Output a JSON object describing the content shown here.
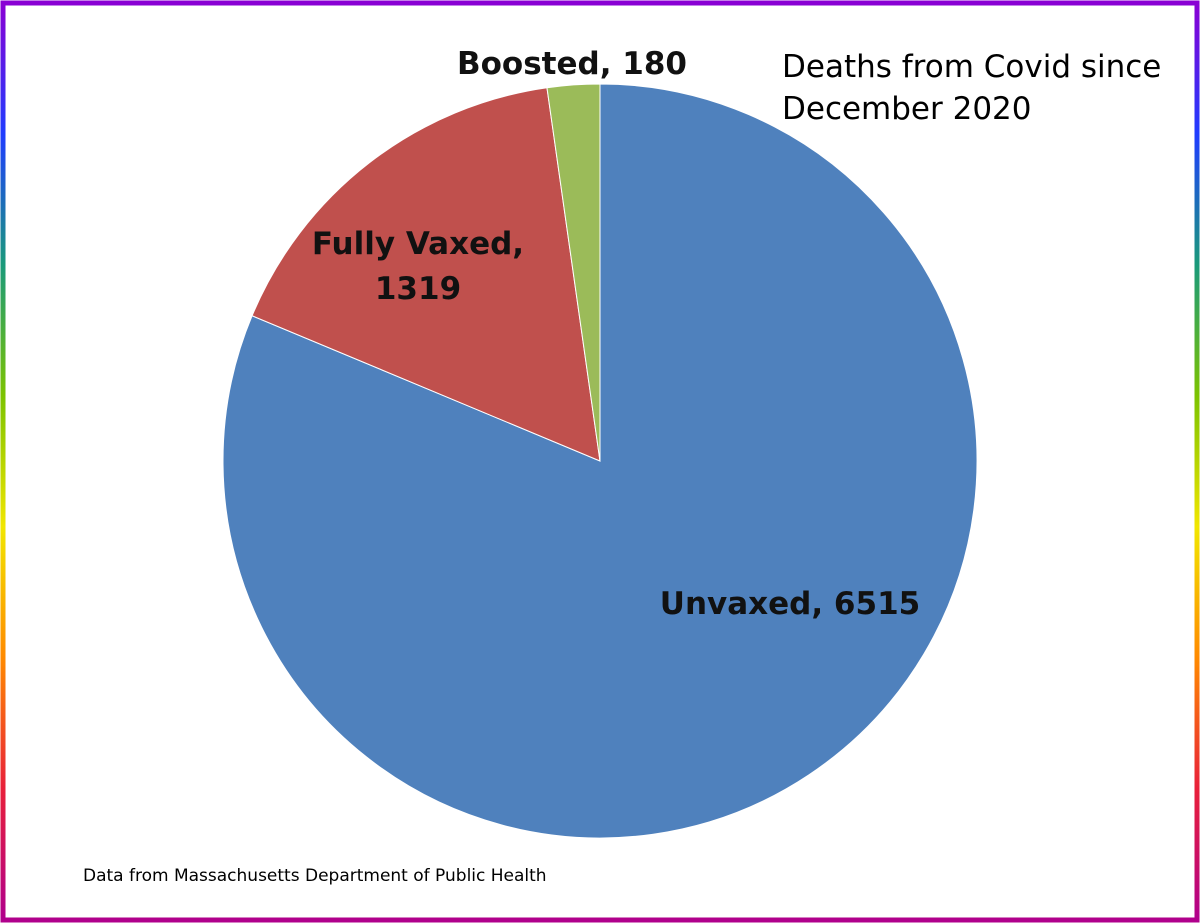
{
  "chart_data": {
    "type": "pie",
    "title": "Deaths from Covid since\nDecember 2020",
    "source": "Data from Massachusetts Department of Public Health",
    "slices": [
      {
        "label": "Unvaxed",
        "value": 6515,
        "color": "#4F81BD",
        "text": "Unvaxed, 6515"
      },
      {
        "label": "Fully Vaxed",
        "value": 1319,
        "color": "#C0504D",
        "text": "Fully Vaxed,\n1319"
      },
      {
        "label": "Boosted",
        "value": 180,
        "color": "#9BBB59",
        "text": "Boosted, 180"
      }
    ]
  },
  "border_gradient": [
    "#8a00d4",
    "#1f3cff",
    "#1a9a7a",
    "#7cc300",
    "#f1e600",
    "#ff8a00",
    "#e8203a",
    "#b0008c"
  ]
}
